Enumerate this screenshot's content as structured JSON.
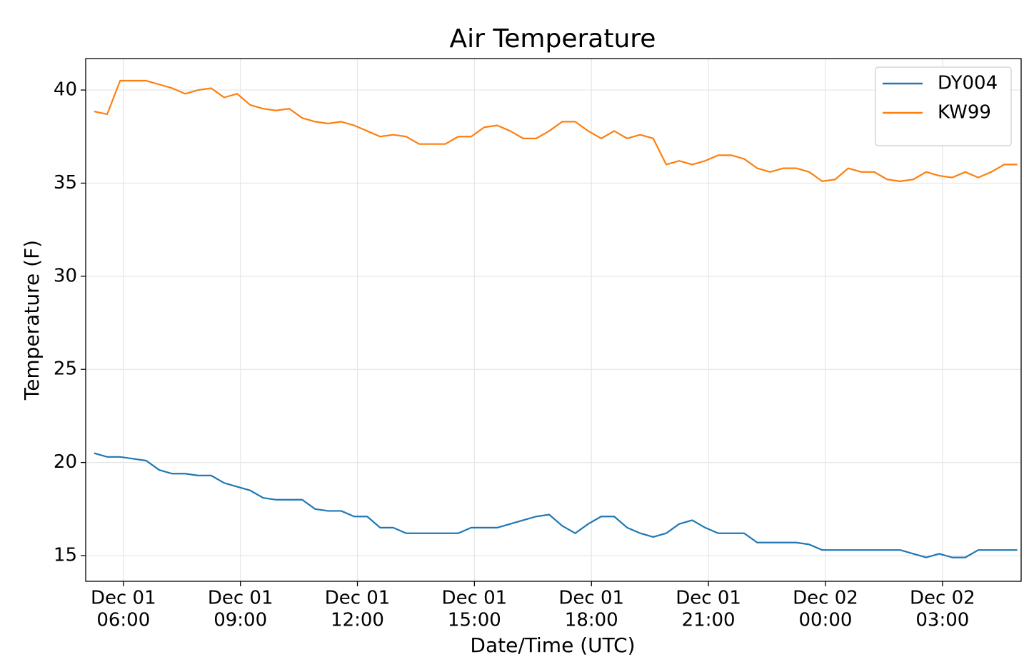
{
  "chart_data": {
    "type": "line",
    "title": "Air Temperature",
    "xlabel": "Date/Time (UTC)",
    "ylabel": "Temperature (F)",
    "x": [
      "Dec 01 05:15",
      "Dec 01 05:35",
      "Dec 01 05:55",
      "Dec 01 06:15",
      "Dec 01 06:35",
      "Dec 01 06:55",
      "Dec 01 07:15",
      "Dec 01 07:35",
      "Dec 01 07:55",
      "Dec 01 08:15",
      "Dec 01 08:35",
      "Dec 01 08:55",
      "Dec 01 09:15",
      "Dec 01 09:35",
      "Dec 01 09:55",
      "Dec 01 10:15",
      "Dec 01 10:35",
      "Dec 01 10:55",
      "Dec 01 11:15",
      "Dec 01 11:35",
      "Dec 01 11:55",
      "Dec 01 12:15",
      "Dec 01 12:35",
      "Dec 01 12:55",
      "Dec 01 13:15",
      "Dec 01 13:35",
      "Dec 01 13:55",
      "Dec 01 14:15",
      "Dec 01 14:35",
      "Dec 01 14:55",
      "Dec 01 15:15",
      "Dec 01 15:35",
      "Dec 01 15:55",
      "Dec 01 16:15",
      "Dec 01 16:35",
      "Dec 01 16:55",
      "Dec 01 17:15",
      "Dec 01 17:35",
      "Dec 01 17:55",
      "Dec 01 18:15",
      "Dec 01 18:35",
      "Dec 01 18:55",
      "Dec 01 19:15",
      "Dec 01 19:35",
      "Dec 01 19:55",
      "Dec 01 20:15",
      "Dec 01 20:35",
      "Dec 01 20:55",
      "Dec 01 21:15",
      "Dec 01 21:35",
      "Dec 01 21:55",
      "Dec 01 22:15",
      "Dec 01 22:35",
      "Dec 01 22:55",
      "Dec 01 23:15",
      "Dec 01 23:35",
      "Dec 01 23:55",
      "Dec 02 00:15",
      "Dec 02 00:35",
      "Dec 02 00:55",
      "Dec 02 01:15",
      "Dec 02 01:35",
      "Dec 02 01:55",
      "Dec 02 02:15",
      "Dec 02 02:35",
      "Dec 02 02:55",
      "Dec 02 03:15",
      "Dec 02 03:35",
      "Dec 02 03:55",
      "Dec 02 04:15",
      "Dec 02 04:35",
      "Dec 02 04:55"
    ],
    "series": [
      {
        "name": "DY004",
        "color": "#1f77b4",
        "values": [
          20.5,
          20.3,
          20.3,
          20.2,
          20.1,
          19.6,
          19.4,
          19.4,
          19.3,
          19.3,
          18.9,
          18.7,
          18.5,
          18.1,
          18.0,
          18.0,
          18.0,
          17.5,
          17.4,
          17.4,
          17.1,
          17.1,
          16.5,
          16.5,
          16.2,
          16.2,
          16.2,
          16.2,
          16.2,
          16.5,
          16.5,
          16.5,
          16.7,
          16.9,
          17.1,
          17.2,
          16.6,
          16.2,
          16.7,
          17.1,
          17.1,
          16.5,
          16.2,
          16.0,
          16.2,
          16.7,
          16.9,
          16.5,
          16.2,
          16.2,
          16.2,
          15.7,
          15.7,
          15.7,
          15.7,
          15.6,
          15.3,
          15.3,
          15.3,
          15.3,
          15.3,
          15.3,
          15.3,
          15.1,
          14.9,
          15.1,
          14.9,
          14.9,
          15.3,
          15.3,
          15.3,
          15.3
        ]
      },
      {
        "name": "KW99",
        "color": "#ff7f0e",
        "values": [
          38.85,
          38.7,
          40.5,
          40.5,
          40.5,
          40.3,
          40.1,
          39.8,
          40.0,
          40.1,
          39.6,
          39.8,
          39.2,
          39.0,
          38.9,
          39.0,
          38.5,
          38.3,
          38.2,
          38.3,
          38.1,
          37.8,
          37.5,
          37.6,
          37.5,
          37.1,
          37.1,
          37.1,
          37.5,
          37.5,
          38.0,
          38.1,
          37.8,
          37.4,
          37.4,
          37.8,
          38.3,
          38.3,
          37.8,
          37.4,
          37.8,
          37.4,
          37.6,
          37.4,
          36.0,
          36.2,
          36.0,
          36.2,
          36.5,
          36.5,
          36.3,
          35.8,
          35.6,
          35.8,
          35.8,
          35.6,
          35.1,
          35.2,
          35.8,
          35.6,
          35.6,
          35.2,
          35.1,
          35.2,
          35.6,
          35.4,
          35.3,
          35.6,
          35.3,
          35.6,
          36.0,
          36.0
        ]
      }
    ],
    "xlim": [
      "Dec 01 05:02",
      "Dec 02 05:01"
    ],
    "xticks": [
      {
        "value": "Dec 01 06:00",
        "label": [
          "Dec 01",
          "06:00"
        ]
      },
      {
        "value": "Dec 01 09:00",
        "label": [
          "Dec 01",
          "09:00"
        ]
      },
      {
        "value": "Dec 01 12:00",
        "label": [
          "Dec 01",
          "12:00"
        ]
      },
      {
        "value": "Dec 01 15:00",
        "label": [
          "Dec 01",
          "15:00"
        ]
      },
      {
        "value": "Dec 01 18:00",
        "label": [
          "Dec 01",
          "18:00"
        ]
      },
      {
        "value": "Dec 01 21:00",
        "label": [
          "Dec 01",
          "21:00"
        ]
      },
      {
        "value": "Dec 02 00:00",
        "label": [
          "Dec 02",
          "00:00"
        ]
      },
      {
        "value": "Dec 02 03:00",
        "label": [
          "Dec 02",
          "03:00"
        ]
      }
    ],
    "ylim": [
      13.62,
      41.69
    ],
    "yticks": [
      15,
      20,
      25,
      30,
      35,
      40
    ],
    "grid": true,
    "legend": "upper right"
  }
}
